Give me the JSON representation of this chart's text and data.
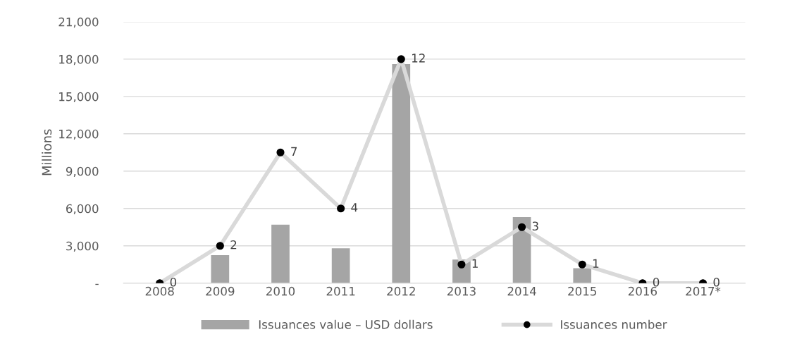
{
  "chart_data": {
    "type": "bar",
    "ylabel": "Millions",
    "categories": [
      "2008",
      "2009",
      "2010",
      "2011",
      "2012",
      "2013",
      "2014",
      "2015",
      "2016",
      "2017*"
    ],
    "series": [
      {
        "name": "Issuances value – USD dollars",
        "color": "#a5a5a5",
        "values": [
          0,
          2250,
          4700,
          2800,
          17600,
          1900,
          5300,
          1200,
          0,
          0
        ]
      },
      {
        "name": "Issuances number",
        "type": "line",
        "axis": "y2",
        "color": "#d9d9d9",
        "marker": "circle",
        "data_labels": true,
        "values": [
          0,
          2,
          7,
          4,
          12,
          1,
          3,
          1,
          0,
          0
        ]
      }
    ],
    "ylim": [
      0,
      21000
    ],
    "yticks": [
      {
        "value": 0,
        "label": "-"
      },
      {
        "value": 3000,
        "label": "3,000"
      },
      {
        "value": 6000,
        "label": "6,000"
      },
      {
        "value": 9000,
        "label": "9,000"
      },
      {
        "value": 12000,
        "label": "12,000"
      },
      {
        "value": 15000,
        "label": "15,000"
      },
      {
        "value": 18000,
        "label": "18,000"
      },
      {
        "value": 21000,
        "label": "21,000"
      }
    ],
    "y2lim": [
      0,
      14
    ],
    "grid": "y",
    "legend": "bottom"
  }
}
